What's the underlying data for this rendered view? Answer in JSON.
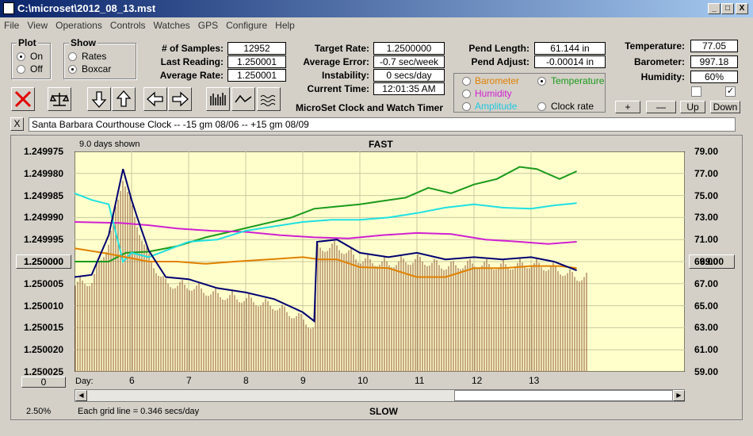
{
  "window": {
    "title": "C:\\microset\\2012_08_13.mst",
    "min": "_",
    "max": "□",
    "close": "X"
  },
  "menu": [
    "File",
    "View",
    "Operations",
    "Controls",
    "Watches",
    "GPS",
    "Configure",
    "Help"
  ],
  "plot_group": {
    "label": "Plot",
    "on": "On",
    "off": "Off",
    "selected": "On"
  },
  "show_group": {
    "label": "Show",
    "rates": "Rates",
    "boxcar": "Boxcar",
    "selected": "Boxcar"
  },
  "stats": {
    "samples_label": "# of Samples:",
    "samples": "12952",
    "last_label": "Last Reading:",
    "last": "1.250001",
    "avg_rate_label": "Average Rate:",
    "avg_rate": "1.250001",
    "target_label": "Target Rate:",
    "target": "1.2500000",
    "avg_err_label": "Average Error:",
    "avg_err": "-0.7 sec/week",
    "instab_label": "Instability:",
    "instab": "0 secs/day",
    "time_label": "Current Time:",
    "time": "12:01:35 AM",
    "pend_len_label": "Pend Length:",
    "pend_len": "61.144 in",
    "pend_adj_label": "Pend Adjust:",
    "pend_adj": "-0.00014 in",
    "temp_label": "Temperature:",
    "temp": "77.05",
    "baro_label": "Barometer:",
    "baro": "997.18",
    "hum_label": "Humidity:",
    "hum": "60%"
  },
  "app_name": "MicroSet Clock and Watch Timer",
  "series_select": {
    "barometer": "Barometer",
    "temperature": "Temperature",
    "humidity": "Humidity",
    "amplitude": "Amplitude",
    "clock_rate": "Clock rate",
    "selected": "Temperature"
  },
  "buttons": {
    "plus": "+",
    "minus": "—",
    "up": "Up",
    "down": "Down"
  },
  "watch_label": "Santa Barbara Courthouse Clock  --    -15 gm 08/06  --  +15 gm 08/09",
  "close_x": "X",
  "chart_info": {
    "days_shown": "9.0 days shown",
    "top": "FAST",
    "bottom": "SLOW",
    "grid_note": "Each grid line = 0.346 secs/day",
    "zoom": "2.50%",
    "left_box": "1.250000",
    "right_box": "69.00",
    "scroll_box": "0",
    "day_label": "Day:"
  },
  "colors": {
    "temperature": "#1a9a1a",
    "humidity": "#d020d0",
    "amplitude": "#20e0e0",
    "barometer": "#e08000",
    "rate": "#000070",
    "bars": "#a07050",
    "plot_bg": "#ffffcc"
  },
  "chart_data": {
    "type": "line",
    "left_ticks": [
      "1.249975",
      "1.249980",
      "1.249985",
      "1.249990",
      "1.249995",
      "1.250000",
      "1.250005",
      "1.250010",
      "1.250015",
      "1.250020",
      "1.250025"
    ],
    "right_ticks": [
      "79.00",
      "77.00",
      "75.00",
      "73.00",
      "71.00",
      "69.00",
      "67.00",
      "65.00",
      "63.00",
      "61.00",
      "59.00"
    ],
    "x_ticks": [
      "6",
      "7",
      "8",
      "9",
      "10",
      "11",
      "12",
      "13"
    ],
    "xlim": [
      5.0,
      14.0
    ],
    "x_tick_values": [
      6,
      7,
      8,
      9,
      10,
      11,
      12,
      13
    ],
    "series": [
      {
        "key": "temperature",
        "x": [
          5.0,
          5.6,
          5.9,
          6.3,
          6.8,
          7.3,
          7.8,
          8.3,
          8.8,
          9.2,
          9.6,
          10.0,
          10.4,
          10.8,
          11.2,
          11.6,
          12.0,
          12.4,
          12.8,
          13.1,
          13.5,
          13.8
        ],
        "y": [
          0.5,
          0.5,
          0.54,
          0.545,
          0.57,
          0.61,
          0.64,
          0.67,
          0.7,
          0.74,
          0.75,
          0.76,
          0.775,
          0.79,
          0.835,
          0.81,
          0.85,
          0.875,
          0.93,
          0.92,
          0.875,
          0.91
        ]
      },
      {
        "key": "humidity",
        "x": [
          5.0,
          5.8,
          6.3,
          6.8,
          7.4,
          8.0,
          8.6,
          9.2,
          9.8,
          10.4,
          11.0,
          11.6,
          12.2,
          12.8,
          13.3,
          13.8
        ],
        "y": [
          0.68,
          0.675,
          0.665,
          0.65,
          0.64,
          0.635,
          0.62,
          0.61,
          0.605,
          0.62,
          0.63,
          0.625,
          0.6,
          0.59,
          0.58,
          0.59
        ]
      },
      {
        "key": "amplitude",
        "x": [
          5.0,
          5.3,
          5.6,
          5.85,
          6.0,
          6.3,
          6.7,
          7.0,
          7.5,
          8.0,
          8.5,
          9.0,
          9.5,
          10.0,
          10.5,
          11.0,
          11.5,
          12.0,
          12.5,
          13.0,
          13.4,
          13.8
        ],
        "y": [
          0.81,
          0.78,
          0.76,
          0.5,
          0.54,
          0.52,
          0.56,
          0.59,
          0.6,
          0.64,
          0.66,
          0.68,
          0.69,
          0.69,
          0.7,
          0.72,
          0.745,
          0.76,
          0.745,
          0.74,
          0.755,
          0.765
        ]
      },
      {
        "key": "barometer",
        "x": [
          5.0,
          5.5,
          5.9,
          6.3,
          6.8,
          7.3,
          7.8,
          8.4,
          9.0,
          9.3,
          9.6,
          10.0,
          10.5,
          11.0,
          11.5,
          12.0,
          12.5,
          13.0,
          13.5,
          13.8
        ],
        "y": [
          0.56,
          0.54,
          0.52,
          0.5,
          0.5,
          0.49,
          0.5,
          0.51,
          0.52,
          0.51,
          0.51,
          0.475,
          0.47,
          0.43,
          0.43,
          0.47,
          0.47,
          0.48,
          0.48,
          0.47
        ]
      },
      {
        "key": "rate",
        "x": [
          5.0,
          5.3,
          5.6,
          5.85,
          6.0,
          6.1,
          6.3,
          6.6,
          7.0,
          7.5,
          8.0,
          8.5,
          9.0,
          9.2,
          9.25,
          9.6,
          10.0,
          10.5,
          11.0,
          11.5,
          12.0,
          12.5,
          13.0,
          13.4,
          13.8
        ],
        "y": [
          0.43,
          0.44,
          0.62,
          0.92,
          0.78,
          0.7,
          0.55,
          0.43,
          0.42,
          0.38,
          0.36,
          0.33,
          0.27,
          0.23,
          0.59,
          0.6,
          0.54,
          0.52,
          0.54,
          0.51,
          0.52,
          0.51,
          0.52,
          0.5,
          0.46
        ]
      }
    ],
    "grid": true
  }
}
